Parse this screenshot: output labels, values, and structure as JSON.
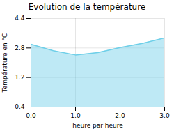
{
  "chart_data": {
    "type": "area",
    "title": "Evolution de la température",
    "xlabel": "heure par heure",
    "ylabel": "Température en °C",
    "x": [
      0,
      0.5,
      1.0,
      1.5,
      2.0,
      2.5,
      3.0
    ],
    "values": [
      3.0,
      2.65,
      2.42,
      2.55,
      2.82,
      3.05,
      3.35
    ],
    "color": "#6ecfe8",
    "xlim": [
      0,
      3
    ],
    "ylim": [
      -0.4,
      4.4
    ],
    "xticks": [
      0,
      1,
      2,
      3
    ],
    "yticks": [
      -0.4,
      1.2,
      2.8,
      4.4
    ],
    "grid": true
  }
}
